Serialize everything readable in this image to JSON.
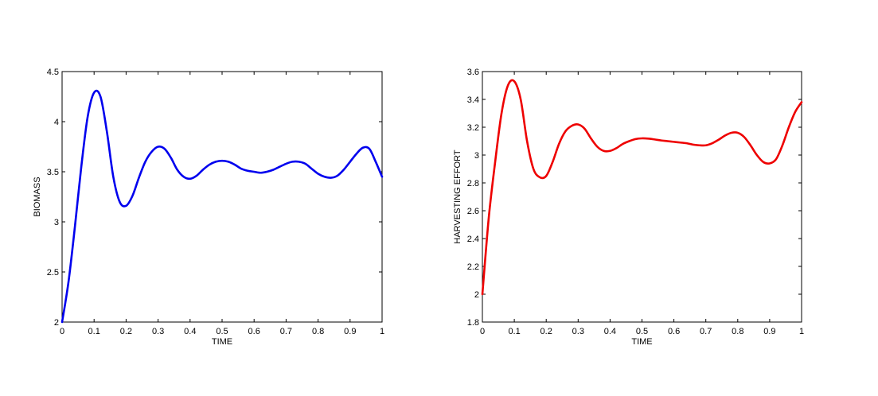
{
  "chart_data": [
    {
      "type": "line",
      "xlabel": "TIME",
      "ylabel": "BIOMASS",
      "xlim": [
        0,
        1
      ],
      "ylim": [
        2,
        4.5
      ],
      "xticks": [
        "0",
        "0.1",
        "0.2",
        "0.3",
        "0.4",
        "0.5",
        "0.6",
        "0.7",
        "0.8",
        "0.9",
        "1"
      ],
      "yticks": [
        "2",
        "2.5",
        "3",
        "3.5",
        "4",
        "4.5"
      ],
      "grid": false,
      "series": [
        {
          "color": "#0000ee",
          "x": [
            0,
            0.02,
            0.04,
            0.06,
            0.08,
            0.1,
            0.12,
            0.14,
            0.16,
            0.18,
            0.2,
            0.22,
            0.24,
            0.26,
            0.28,
            0.3,
            0.32,
            0.34,
            0.36,
            0.38,
            0.4,
            0.42,
            0.44,
            0.46,
            0.48,
            0.5,
            0.52,
            0.54,
            0.56,
            0.58,
            0.6,
            0.62,
            0.64,
            0.66,
            0.68,
            0.7,
            0.72,
            0.74,
            0.76,
            0.78,
            0.8,
            0.82,
            0.84,
            0.86,
            0.88,
            0.9,
            0.92,
            0.94,
            0.96,
            0.98,
            1.0
          ],
          "y": [
            2.0,
            2.4,
            2.95,
            3.55,
            4.05,
            4.29,
            4.25,
            3.9,
            3.45,
            3.2,
            3.16,
            3.26,
            3.44,
            3.6,
            3.7,
            3.75,
            3.73,
            3.64,
            3.52,
            3.45,
            3.43,
            3.46,
            3.52,
            3.57,
            3.6,
            3.61,
            3.6,
            3.57,
            3.53,
            3.51,
            3.5,
            3.49,
            3.5,
            3.52,
            3.55,
            3.58,
            3.6,
            3.6,
            3.58,
            3.53,
            3.48,
            3.45,
            3.44,
            3.46,
            3.52,
            3.6,
            3.68,
            3.74,
            3.73,
            3.6,
            3.45
          ]
        }
      ]
    },
    {
      "type": "line",
      "xlabel": "TIME",
      "ylabel": "HARVESTING EFFORT",
      "xlim": [
        0,
        1
      ],
      "ylim": [
        1.8,
        3.6
      ],
      "xticks": [
        "0",
        "0.1",
        "0.2",
        "0.3",
        "0.4",
        "0.5",
        "0.6",
        "0.7",
        "0.8",
        "0.9",
        "1"
      ],
      "yticks": [
        "1.8",
        "2",
        "2.2",
        "2.4",
        "2.6",
        "2.8",
        "3",
        "3.2",
        "3.4",
        "3.6"
      ],
      "grid": false,
      "series": [
        {
          "color": "#ee0000",
          "x": [
            0,
            0.02,
            0.04,
            0.06,
            0.08,
            0.1,
            0.12,
            0.14,
            0.16,
            0.18,
            0.2,
            0.22,
            0.24,
            0.26,
            0.28,
            0.3,
            0.32,
            0.34,
            0.36,
            0.38,
            0.4,
            0.42,
            0.44,
            0.46,
            0.48,
            0.5,
            0.52,
            0.54,
            0.56,
            0.58,
            0.6,
            0.62,
            0.64,
            0.66,
            0.68,
            0.7,
            0.72,
            0.74,
            0.76,
            0.78,
            0.8,
            0.82,
            0.84,
            0.86,
            0.88,
            0.9,
            0.92,
            0.94,
            0.96,
            0.98,
            1.0
          ],
          "y": [
            2.0,
            2.55,
            2.95,
            3.3,
            3.5,
            3.53,
            3.4,
            3.1,
            2.9,
            2.84,
            2.85,
            2.95,
            3.08,
            3.17,
            3.21,
            3.22,
            3.19,
            3.12,
            3.06,
            3.03,
            3.03,
            3.05,
            3.08,
            3.1,
            3.115,
            3.12,
            3.118,
            3.112,
            3.105,
            3.1,
            3.095,
            3.09,
            3.085,
            3.075,
            3.07,
            3.07,
            3.085,
            3.11,
            3.14,
            3.16,
            3.16,
            3.13,
            3.07,
            3.0,
            2.95,
            2.94,
            2.97,
            3.07,
            3.2,
            3.31,
            3.38
          ]
        }
      ]
    }
  ]
}
